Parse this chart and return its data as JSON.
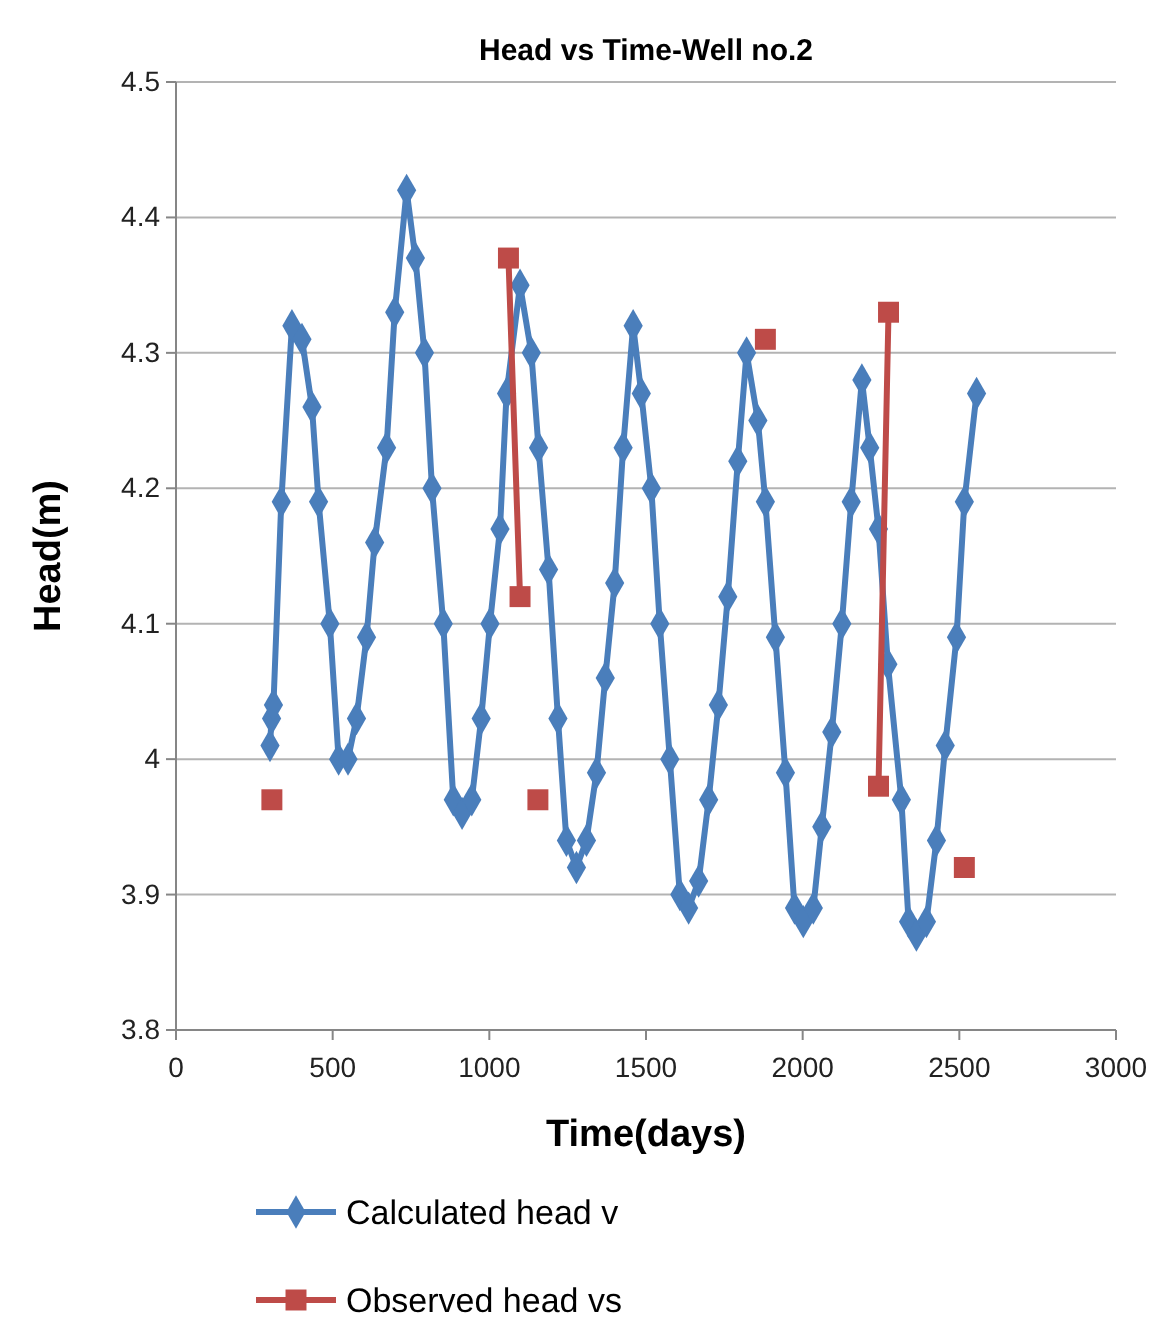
{
  "chart_data": {
    "type": "line",
    "title": "Head vs Time-Well no.2",
    "xlabel": "Time(days)",
    "ylabel": "Head(m)",
    "xlim": [
      0,
      3000
    ],
    "xticks": [
      0,
      500,
      1000,
      1500,
      2000,
      2500,
      3000
    ],
    "ylim": [
      3.8,
      4.5
    ],
    "yticks": [
      3.8,
      3.9,
      4,
      4.1,
      4.2,
      4.3,
      4.4,
      4.5
    ],
    "grid": "y",
    "legend": "bottom",
    "series": [
      {
        "name": "Calculated head v",
        "color": "#4a7ebb",
        "marker": "diamond",
        "x": [
          300,
          305,
          311,
          336,
          370,
          402,
          434,
          455,
          491,
          519,
          549,
          576,
          608,
          634,
          672,
          698,
          736,
          764,
          793,
          817,
          853,
          885,
          913,
          944,
          974,
          1002,
          1034,
          1055,
          1098,
          1134,
          1157,
          1189,
          1219,
          1246,
          1278,
          1310,
          1342,
          1370,
          1400,
          1427,
          1459,
          1485,
          1517,
          1544,
          1576,
          1608,
          1636,
          1668,
          1700,
          1731,
          1761,
          1793,
          1821,
          1857,
          1881,
          1913,
          1945,
          1974,
          2002,
          2034,
          2061,
          2093,
          2125,
          2155,
          2189,
          2214,
          2242,
          2272,
          2315,
          2338,
          2363,
          2395,
          2427,
          2455,
          2491,
          2516,
          2555
        ],
        "values": [
          4.01,
          4.03,
          4.04,
          4.19,
          4.32,
          4.31,
          4.26,
          4.19,
          4.1,
          4.0,
          4.0,
          4.03,
          4.09,
          4.16,
          4.23,
          4.33,
          4.42,
          4.37,
          4.3,
          4.2,
          4.1,
          3.97,
          3.96,
          3.97,
          4.03,
          4.1,
          4.17,
          4.27,
          4.35,
          4.3,
          4.23,
          4.14,
          4.03,
          3.94,
          3.92,
          3.94,
          3.99,
          4.06,
          4.13,
          4.23,
          4.32,
          4.27,
          4.2,
          4.1,
          4.0,
          3.9,
          3.89,
          3.91,
          3.97,
          4.04,
          4.12,
          4.22,
          4.3,
          4.25,
          4.19,
          4.09,
          3.99,
          3.89,
          3.88,
          3.89,
          3.95,
          4.02,
          4.1,
          4.19,
          4.28,
          4.23,
          4.17,
          4.07,
          3.97,
          3.88,
          3.87,
          3.88,
          3.94,
          4.01,
          4.09,
          4.19,
          4.27
        ]
      },
      {
        "name": "Observed head vs",
        "color": "#be4b48",
        "marker": "square",
        "x": [
          306,
          700,
          1061,
          1098,
          1130,
          1155,
          1500,
          1881,
          2100,
          2242,
          2274,
          2400,
          2516
        ],
        "values": [
          3.97,
          null,
          4.37,
          4.12,
          null,
          3.97,
          null,
          4.31,
          null,
          3.98,
          4.33,
          null,
          3.92
        ]
      }
    ]
  }
}
